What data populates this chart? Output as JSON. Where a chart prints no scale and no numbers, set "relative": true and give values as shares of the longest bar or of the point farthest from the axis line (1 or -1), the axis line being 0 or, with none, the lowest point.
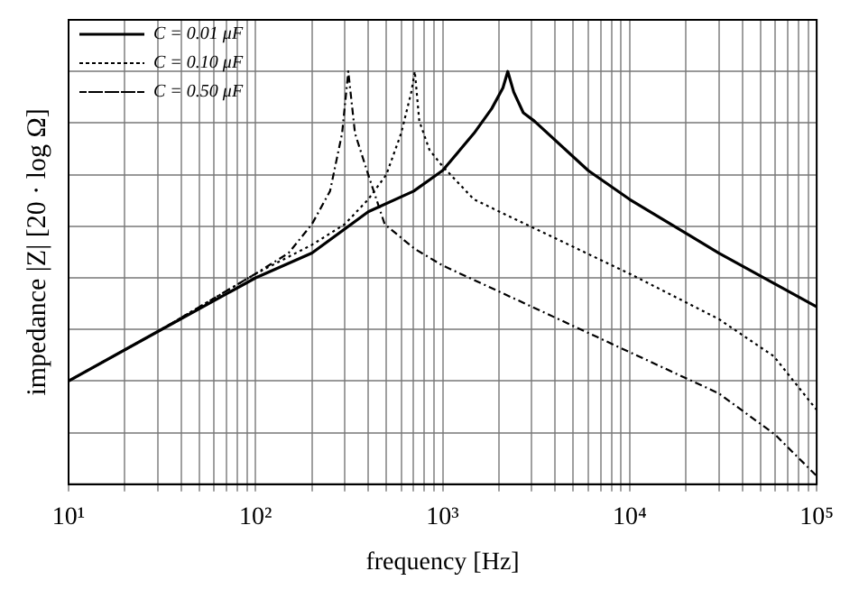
{
  "chart_data": {
    "type": "line",
    "relative": true,
    "xlabel": "frequency [Hz]",
    "ylabel": "impedance |Z| [20 · log Ω]",
    "log": "x",
    "grid": true,
    "legend": "top left",
    "marker": "none",
    "xlim": [
      10,
      100000
    ],
    "xticks": [
      {
        "value": 10,
        "label": "10¹"
      },
      {
        "value": 20,
        "label": null
      },
      {
        "value": 30,
        "label": null
      },
      {
        "value": 40,
        "label": null
      },
      {
        "value": 50,
        "label": null
      },
      {
        "value": 60,
        "label": null
      },
      {
        "value": 70,
        "label": null
      },
      {
        "value": 80,
        "label": null
      },
      {
        "value": 90,
        "label": null
      },
      {
        "value": 100,
        "label": "10²"
      },
      {
        "value": 200,
        "label": null
      },
      {
        "value": 300,
        "label": null
      },
      {
        "value": 400,
        "label": null
      },
      {
        "value": 500,
        "label": null
      },
      {
        "value": 600,
        "label": null
      },
      {
        "value": 700,
        "label": null
      },
      {
        "value": 800,
        "label": null
      },
      {
        "value": 900,
        "label": null
      },
      {
        "value": 1000,
        "label": "10³"
      },
      {
        "value": 2000,
        "label": null
      },
      {
        "value": 3000,
        "label": null
      },
      {
        "value": 4000,
        "label": null
      },
      {
        "value": 5000,
        "label": null
      },
      {
        "value": 6000,
        "label": null
      },
      {
        "value": 7000,
        "label": null
      },
      {
        "value": 8000,
        "label": null
      },
      {
        "value": 9000,
        "label": null
      },
      {
        "value": 10000,
        "label": "10⁴"
      },
      {
        "value": 20000,
        "label": null
      },
      {
        "value": 30000,
        "label": null
      },
      {
        "value": 40000,
        "label": null
      },
      {
        "value": 50000,
        "label": null
      },
      {
        "value": 60000,
        "label": null
      },
      {
        "value": 70000,
        "label": null
      },
      {
        "value": 80000,
        "label": null
      },
      {
        "value": 90000,
        "label": null
      },
      {
        "value": 100000,
        "label": "10⁵"
      }
    ],
    "series": [
      {
        "name": "C = 0.01 μF",
        "color": "#000000",
        "line_style": "solid",
        "x": [
          10,
          30,
          100,
          200,
          400,
          700,
          1000,
          1470,
          1830,
          2100,
          2230,
          2400,
          2700,
          3090,
          6000,
          10000,
          30000,
          100000
        ],
        "values": [
          0.25,
          0.37,
          0.5,
          0.56,
          0.66,
          0.71,
          0.76,
          0.85,
          0.91,
          0.96,
          1,
          0.95,
          0.9,
          0.88,
          0.76,
          0.69,
          0.56,
          0.43
        ]
      },
      {
        "name": "C = 0.10 μF",
        "color": "#000000",
        "line_style": "dotted",
        "x": [
          10,
          30,
          100,
          200,
          300,
          400,
          500,
          600,
          680,
          710,
          750,
          850,
          1000,
          1470,
          3090,
          10000,
          30000,
          59000,
          100000
        ],
        "values": [
          0.25,
          0.37,
          0.51,
          0.58,
          0.63,
          0.69,
          0.75,
          0.85,
          0.95,
          1,
          0.88,
          0.81,
          0.77,
          0.69,
          0.62,
          0.51,
          0.4,
          0.31,
          0.18
        ]
      },
      {
        "name": "C = 0.50 μF",
        "color": "#000000",
        "line_style": "dashed",
        "x": [
          10,
          30,
          100,
          150,
          200,
          250,
          290,
          313,
          340,
          400,
          490,
          710,
          1000,
          3000,
          10000,
          30000,
          60000,
          100000
        ],
        "values": [
          0.25,
          0.37,
          0.51,
          0.56,
          0.63,
          0.71,
          0.85,
          1,
          0.85,
          0.75,
          0.63,
          0.57,
          0.53,
          0.43,
          0.32,
          0.22,
          0.12,
          0.02
        ]
      }
    ]
  }
}
